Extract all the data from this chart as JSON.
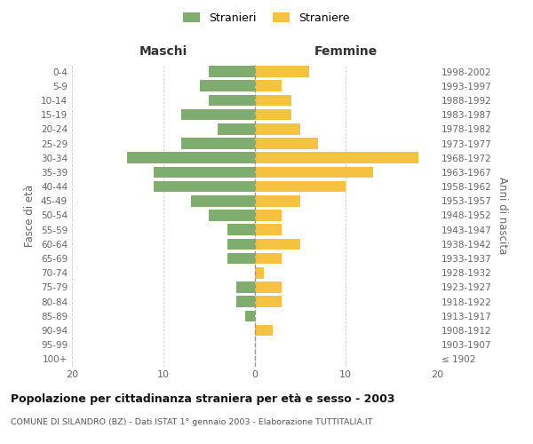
{
  "age_groups": [
    "100+",
    "95-99",
    "90-94",
    "85-89",
    "80-84",
    "75-79",
    "70-74",
    "65-69",
    "60-64",
    "55-59",
    "50-54",
    "45-49",
    "40-44",
    "35-39",
    "30-34",
    "25-29",
    "20-24",
    "15-19",
    "10-14",
    "5-9",
    "0-4"
  ],
  "birth_years": [
    "≤ 1902",
    "1903-1907",
    "1908-1912",
    "1913-1917",
    "1918-1922",
    "1923-1927",
    "1928-1932",
    "1933-1937",
    "1938-1942",
    "1943-1947",
    "1948-1952",
    "1953-1957",
    "1958-1962",
    "1963-1967",
    "1968-1972",
    "1973-1977",
    "1978-1982",
    "1983-1987",
    "1988-1992",
    "1993-1997",
    "1998-2002"
  ],
  "maschi": [
    0,
    0,
    0,
    1,
    2,
    2,
    0,
    3,
    3,
    3,
    5,
    7,
    11,
    11,
    14,
    8,
    4,
    8,
    5,
    6,
    5
  ],
  "femmine": [
    0,
    0,
    2,
    0,
    3,
    3,
    1,
    3,
    5,
    3,
    3,
    5,
    10,
    13,
    18,
    7,
    5,
    4,
    4,
    3,
    6
  ],
  "maschi_color": "#7fad6f",
  "femmine_color": "#f5c242",
  "bg_color": "#ffffff",
  "grid_color": "#cccccc",
  "title": "Popolazione per cittadinanza straniera per età e sesso - 2003",
  "subtitle": "COMUNE DI SILANDRO (BZ) - Dati ISTAT 1° gennaio 2003 - Elaborazione TUTTITALIA.IT",
  "ylabel_left": "Fasce di età",
  "ylabel_right": "Anni di nascita",
  "xlabel_maschi": "Maschi",
  "xlabel_femmine": "Femmine",
  "legend_maschi": "Stranieri",
  "legend_femmine": "Straniere",
  "xlim": 20
}
